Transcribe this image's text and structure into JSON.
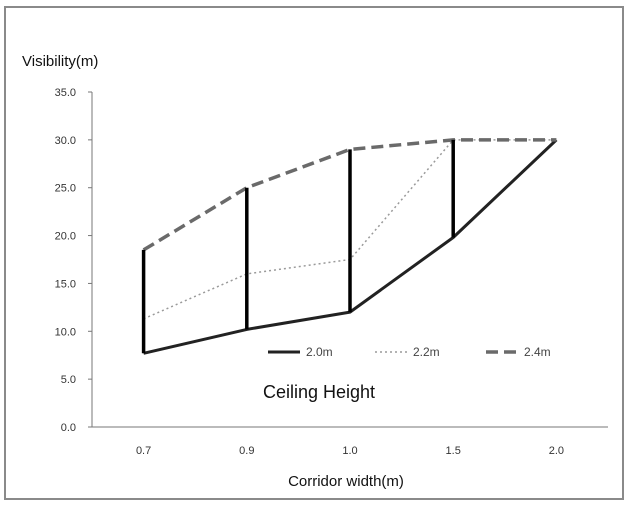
{
  "chart_data": {
    "type": "line",
    "ylabel": "Visibility(m)",
    "xlabel": "Corridor width(m)",
    "categories": [
      "0.7",
      "0.9",
      "1.0",
      "1.5",
      "2.0"
    ],
    "ylim": [
      0,
      35
    ],
    "yticks": [
      "0.0",
      "5.0",
      "10.0",
      "15.0",
      "20.0",
      "25.0",
      "30.0",
      "35.0"
    ],
    "ytick_values": [
      0,
      5,
      10,
      15,
      20,
      25,
      30,
      35
    ],
    "grid": false,
    "legend_placement": "bottom-right",
    "annotation": "Ceiling Height",
    "series": [
      {
        "name": "2.0m",
        "style": "solid",
        "color": "#222222",
        "values": [
          7.7,
          10.2,
          12,
          19.8,
          30
        ]
      },
      {
        "name": "2.2m",
        "style": "dotted",
        "color": "#9a9a9a",
        "values": [
          11.3,
          16,
          17.5,
          30,
          30
        ]
      },
      {
        "name": "2.4m",
        "style": "dashed",
        "color": "#6a6a6a",
        "values": [
          18.5,
          25,
          29,
          30,
          30
        ]
      }
    ],
    "range_bars": [
      {
        "category": "0.7",
        "low": 7.7,
        "high": 18.5
      },
      {
        "category": "0.9",
        "low": 10.2,
        "high": 25
      },
      {
        "category": "1.0",
        "low": 12,
        "high": 29
      },
      {
        "category": "1.5",
        "low": 19.8,
        "high": 30
      }
    ]
  }
}
